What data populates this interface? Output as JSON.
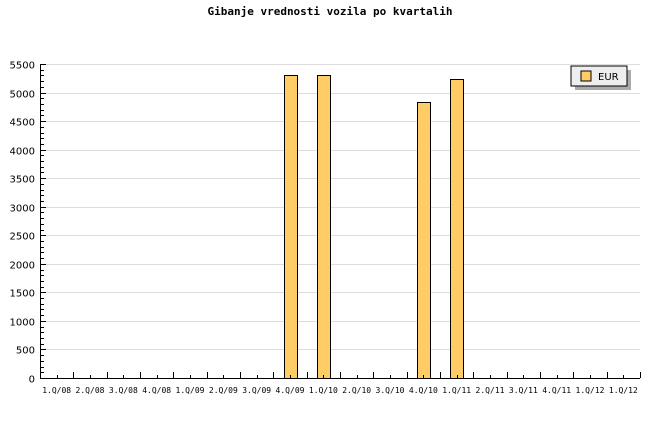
{
  "chart_data": {
    "type": "bar",
    "title": "Gibanje vrednosti vozila po kvartalih",
    "xlabel": "",
    "ylabel": "",
    "categories": [
      "1.Q/08",
      "2.Q/08",
      "3.Q/08",
      "4.Q/08",
      "1.Q/09",
      "2.Q/09",
      "3.Q/09",
      "4.Q/09",
      "1.Q/10",
      "2.Q/10",
      "3.Q/10",
      "4.Q/10",
      "1.Q/11",
      "2.Q/11",
      "3.Q/11",
      "4.Q/11",
      "1.Q/12",
      "1.Q/12"
    ],
    "series": [
      {
        "name": "EUR",
        "color": "#ffcc66",
        "values": [
          0,
          0,
          0,
          0,
          0,
          0,
          0,
          5300,
          5300,
          0,
          0,
          4830,
          5230,
          0,
          0,
          0,
          0,
          0
        ]
      }
    ],
    "ylim": [
      0,
      5500
    ],
    "yticks": [
      0,
      500,
      1000,
      1500,
      2000,
      2500,
      3000,
      3500,
      4000,
      4500,
      5000,
      5500
    ],
    "grid": true,
    "legend_position": "top-right"
  }
}
